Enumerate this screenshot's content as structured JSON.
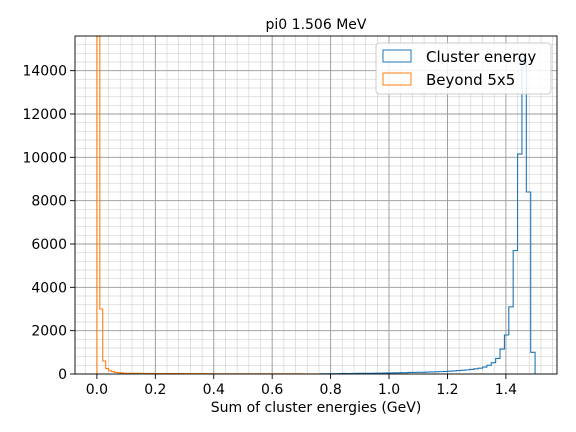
{
  "chart_data": {
    "type": "histogram",
    "title": "pi0 1.506 MeV",
    "xlabel": "Sum of cluster energies (GeV)",
    "ylabel": "",
    "xlim": [
      -0.075,
      1.575
    ],
    "ylim": [
      0,
      15600
    ],
    "xticks": [
      0.0,
      0.2,
      0.4,
      0.6,
      0.8,
      1.0,
      1.2,
      1.4
    ],
    "xtick_labels": [
      "0.0",
      "0.2",
      "0.4",
      "0.6",
      "0.8",
      "1.0",
      "1.2",
      "1.4"
    ],
    "yticks": [
      0,
      2000,
      4000,
      6000,
      8000,
      10000,
      12000,
      14000
    ],
    "ytick_labels": [
      "0",
      "2000",
      "4000",
      "6000",
      "8000",
      "10000",
      "12000",
      "14000"
    ],
    "grid": true,
    "legend_position": "top-right",
    "bin_width": 0.015,
    "series": [
      {
        "name": "Cluster energy",
        "color": "#1f77b4",
        "bins": [
          [
            0.765,
            0.78,
            10
          ],
          [
            0.78,
            0.795,
            10
          ],
          [
            0.795,
            0.81,
            15
          ],
          [
            0.81,
            0.825,
            15
          ],
          [
            0.825,
            0.84,
            20
          ],
          [
            0.84,
            0.855,
            25
          ],
          [
            0.855,
            0.87,
            20
          ],
          [
            0.87,
            0.885,
            25
          ],
          [
            0.885,
            0.9,
            30
          ],
          [
            0.9,
            0.915,
            30
          ],
          [
            0.915,
            0.93,
            35
          ],
          [
            0.93,
            0.945,
            35
          ],
          [
            0.945,
            0.96,
            40
          ],
          [
            0.96,
            0.975,
            40
          ],
          [
            0.975,
            0.99,
            45
          ],
          [
            0.99,
            1.005,
            50
          ],
          [
            1.005,
            1.02,
            50
          ],
          [
            1.02,
            1.035,
            55
          ],
          [
            1.035,
            1.05,
            60
          ],
          [
            1.05,
            1.065,
            60
          ],
          [
            1.065,
            1.08,
            70
          ],
          [
            1.08,
            1.095,
            70
          ],
          [
            1.095,
            1.11,
            80
          ],
          [
            1.11,
            1.125,
            80
          ],
          [
            1.125,
            1.14,
            90
          ],
          [
            1.14,
            1.155,
            95
          ],
          [
            1.155,
            1.17,
            100
          ],
          [
            1.17,
            1.185,
            110
          ],
          [
            1.185,
            1.2,
            120
          ],
          [
            1.2,
            1.215,
            130
          ],
          [
            1.215,
            1.23,
            140
          ],
          [
            1.23,
            1.245,
            160
          ],
          [
            1.245,
            1.26,
            170
          ],
          [
            1.26,
            1.275,
            190
          ],
          [
            1.275,
            1.29,
            210
          ],
          [
            1.29,
            1.305,
            240
          ],
          [
            1.305,
            1.32,
            270
          ],
          [
            1.32,
            1.335,
            320
          ],
          [
            1.335,
            1.35,
            400
          ],
          [
            1.35,
            1.365,
            520
          ],
          [
            1.365,
            1.38,
            720
          ],
          [
            1.38,
            1.395,
            1150
          ],
          [
            1.395,
            1.41,
            1800
          ],
          [
            1.41,
            1.425,
            3100
          ],
          [
            1.425,
            1.44,
            5700
          ],
          [
            1.44,
            1.455,
            10150
          ],
          [
            1.455,
            1.47,
            14600
          ],
          [
            1.47,
            1.485,
            8400
          ],
          [
            1.485,
            1.5,
            1000
          ]
        ]
      },
      {
        "name": "Beyond 5x5",
        "color": "#ff7f0e",
        "bins": [
          [
            0.0,
            0.01,
            16500
          ],
          [
            0.01,
            0.02,
            3000
          ],
          [
            0.02,
            0.03,
            600
          ],
          [
            0.03,
            0.04,
            250
          ],
          [
            0.04,
            0.05,
            150
          ],
          [
            0.05,
            0.06,
            110
          ],
          [
            0.06,
            0.07,
            80
          ],
          [
            0.07,
            0.08,
            60
          ],
          [
            0.08,
            0.09,
            50
          ],
          [
            0.09,
            0.1,
            40
          ],
          [
            0.1,
            0.12,
            35
          ],
          [
            0.12,
            0.15,
            30
          ],
          [
            0.15,
            0.2,
            25
          ],
          [
            0.2,
            0.3,
            20
          ],
          [
            0.3,
            0.4,
            15
          ],
          [
            0.4,
            0.5,
            12
          ],
          [
            0.5,
            0.6,
            10
          ],
          [
            0.6,
            0.7,
            8
          ],
          [
            0.7,
            0.76,
            5
          ]
        ]
      }
    ]
  }
}
